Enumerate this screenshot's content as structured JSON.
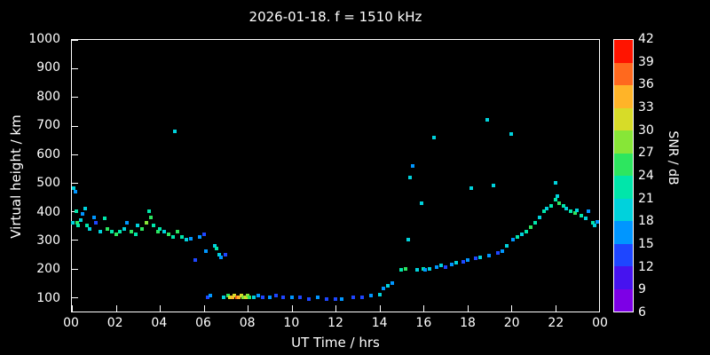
{
  "title": "2026-01-18. f = 1510 kHz",
  "chart_data": {
    "type": "scatter",
    "title": "2026-01-18. f = 1510 kHz",
    "xlabel": "UT Time / hrs",
    "ylabel": "Virtual height / km",
    "background": "#000000",
    "text_color": "#ffffff",
    "xlim": [
      0,
      24
    ],
    "ylim": [
      50,
      1000
    ],
    "xticks": {
      "values": [
        0,
        2,
        4,
        6,
        8,
        10,
        12,
        14,
        16,
        18,
        20,
        22,
        24
      ],
      "labels": [
        "00",
        "02",
        "04",
        "06",
        "08",
        "10",
        "12",
        "14",
        "16",
        "18",
        "20",
        "22",
        "00"
      ]
    },
    "yticks": {
      "values": [
        100,
        200,
        300,
        400,
        500,
        600,
        700,
        800,
        900,
        1000
      ],
      "labels": [
        "100",
        "200",
        "300",
        "400",
        "500",
        "600",
        "700",
        "800",
        "900",
        "1000"
      ]
    },
    "colorbar": {
      "label": "SNR / dB",
      "min": 6,
      "max": 42,
      "step": 3,
      "tick_values": [
        42,
        39,
        36,
        33,
        30,
        27,
        24,
        21,
        18,
        15,
        12,
        9,
        6
      ],
      "segment_colors_bottom_to_top": [
        "#7d00e6",
        "#4613ef",
        "#1e46ff",
        "#0096ff",
        "#00d2dc",
        "#00e6aa",
        "#2de65f",
        "#87e637",
        "#d7dc28",
        "#ffb428",
        "#ff691e",
        "#ff1400"
      ]
    },
    "points": [
      [
        0.05,
        360,
        18
      ],
      [
        0.1,
        480,
        18
      ],
      [
        0.15,
        470,
        15
      ],
      [
        0.2,
        400,
        21
      ],
      [
        0.25,
        360,
        24
      ],
      [
        0.3,
        350,
        21
      ],
      [
        0.4,
        370,
        18
      ],
      [
        0.5,
        390,
        15
      ],
      [
        0.6,
        410,
        18
      ],
      [
        0.7,
        350,
        21
      ],
      [
        0.8,
        340,
        18
      ],
      [
        1.0,
        380,
        15
      ],
      [
        1.1,
        360,
        12
      ],
      [
        1.3,
        330,
        18
      ],
      [
        1.5,
        375,
        21
      ],
      [
        1.6,
        340,
        24
      ],
      [
        1.8,
        330,
        21
      ],
      [
        2.0,
        320,
        24
      ],
      [
        2.2,
        330,
        21
      ],
      [
        2.4,
        340,
        18
      ],
      [
        2.5,
        360,
        15
      ],
      [
        2.7,
        330,
        24
      ],
      [
        2.9,
        320,
        21
      ],
      [
        3.0,
        350,
        18
      ],
      [
        3.2,
        340,
        24
      ],
      [
        3.4,
        360,
        27
      ],
      [
        3.5,
        400,
        21
      ],
      [
        3.6,
        380,
        24
      ],
      [
        3.7,
        350,
        21
      ],
      [
        3.9,
        330,
        24
      ],
      [
        4.0,
        340,
        21
      ],
      [
        4.2,
        330,
        18
      ],
      [
        4.4,
        320,
        24
      ],
      [
        4.6,
        310,
        21
      ],
      [
        4.7,
        680,
        18
      ],
      [
        4.8,
        330,
        24
      ],
      [
        5.0,
        310,
        21
      ],
      [
        5.2,
        300,
        18
      ],
      [
        5.4,
        305,
        15
      ],
      [
        5.6,
        230,
        12
      ],
      [
        5.8,
        310,
        15
      ],
      [
        6.0,
        320,
        12
      ],
      [
        6.1,
        260,
        15
      ],
      [
        6.2,
        100,
        12
      ],
      [
        6.3,
        105,
        15
      ],
      [
        6.5,
        280,
        18
      ],
      [
        6.6,
        270,
        21
      ],
      [
        6.7,
        250,
        18
      ],
      [
        6.8,
        240,
        15
      ],
      [
        6.9,
        100,
        18
      ],
      [
        7.0,
        250,
        12
      ],
      [
        7.1,
        105,
        24
      ],
      [
        7.2,
        100,
        30
      ],
      [
        7.3,
        100,
        33
      ],
      [
        7.4,
        105,
        30
      ],
      [
        7.5,
        100,
        36
      ],
      [
        7.6,
        100,
        33
      ],
      [
        7.7,
        105,
        30
      ],
      [
        7.8,
        100,
        27
      ],
      [
        7.9,
        100,
        30
      ],
      [
        8.0,
        105,
        27
      ],
      [
        8.1,
        100,
        24
      ],
      [
        8.3,
        100,
        18
      ],
      [
        8.5,
        105,
        15
      ],
      [
        8.7,
        100,
        12
      ],
      [
        9.0,
        100,
        15
      ],
      [
        9.3,
        105,
        12
      ],
      [
        9.6,
        100,
        12
      ],
      [
        10.0,
        100,
        15
      ],
      [
        10.4,
        100,
        12
      ],
      [
        10.8,
        95,
        12
      ],
      [
        11.2,
        100,
        15
      ],
      [
        11.6,
        95,
        12
      ],
      [
        12.0,
        95,
        12
      ],
      [
        12.3,
        95,
        15
      ],
      [
        12.8,
        100,
        12
      ],
      [
        13.2,
        100,
        12
      ],
      [
        13.6,
        105,
        15
      ],
      [
        14.0,
        110,
        18
      ],
      [
        14.2,
        130,
        15
      ],
      [
        14.4,
        140,
        18
      ],
      [
        14.6,
        150,
        15
      ],
      [
        15.0,
        195,
        21
      ],
      [
        15.2,
        200,
        24
      ],
      [
        15.3,
        300,
        18
      ],
      [
        15.4,
        520,
        18
      ],
      [
        15.5,
        560,
        15
      ],
      [
        15.7,
        195,
        18
      ],
      [
        15.9,
        430,
        18
      ],
      [
        16.0,
        200,
        21
      ],
      [
        16.1,
        195,
        15
      ],
      [
        16.3,
        200,
        18
      ],
      [
        16.5,
        660,
        18
      ],
      [
        16.6,
        205,
        15
      ],
      [
        16.8,
        210,
        18
      ],
      [
        17.0,
        205,
        12
      ],
      [
        17.3,
        215,
        15
      ],
      [
        17.5,
        220,
        18
      ],
      [
        17.8,
        225,
        12
      ],
      [
        18.0,
        230,
        15
      ],
      [
        18.2,
        480,
        18
      ],
      [
        18.4,
        235,
        12
      ],
      [
        18.6,
        240,
        18
      ],
      [
        18.9,
        720,
        18
      ],
      [
        19.0,
        245,
        15
      ],
      [
        19.2,
        490,
        18
      ],
      [
        19.4,
        255,
        12
      ],
      [
        19.6,
        260,
        15
      ],
      [
        19.8,
        280,
        18
      ],
      [
        20.0,
        670,
        18
      ],
      [
        20.1,
        300,
        15
      ],
      [
        20.3,
        310,
        21
      ],
      [
        20.5,
        320,
        18
      ],
      [
        20.7,
        330,
        21
      ],
      [
        20.9,
        345,
        24
      ],
      [
        21.1,
        360,
        21
      ],
      [
        21.3,
        380,
        18
      ],
      [
        21.5,
        400,
        21
      ],
      [
        21.6,
        410,
        18
      ],
      [
        21.8,
        420,
        21
      ],
      [
        22.0,
        500,
        18
      ],
      [
        22.0,
        440,
        21
      ],
      [
        22.1,
        455,
        18
      ],
      [
        22.2,
        430,
        24
      ],
      [
        22.4,
        420,
        21
      ],
      [
        22.5,
        410,
        18
      ],
      [
        22.7,
        400,
        21
      ],
      [
        22.9,
        395,
        24
      ],
      [
        23.0,
        405,
        18
      ],
      [
        23.2,
        385,
        21
      ],
      [
        23.4,
        375,
        18
      ],
      [
        23.5,
        400,
        15
      ],
      [
        23.7,
        360,
        21
      ],
      [
        23.8,
        350,
        18
      ],
      [
        23.9,
        365,
        15
      ]
    ]
  }
}
